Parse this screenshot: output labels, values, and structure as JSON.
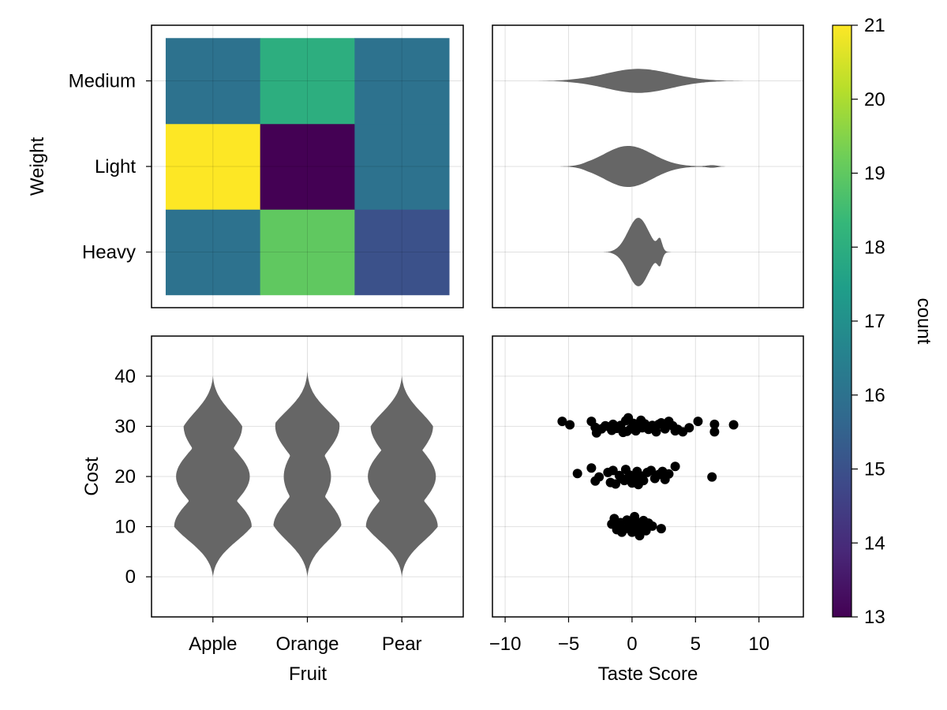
{
  "chart_data": [
    {
      "panel": "top-left",
      "type": "heatmap",
      "x_categories": [
        "Apple",
        "Orange",
        "Pear"
      ],
      "y_categories": [
        "Heavy",
        "Light",
        "Medium"
      ],
      "ylabel": "Weight",
      "values": [
        [
          16,
          19,
          15
        ],
        [
          21,
          13,
          16
        ],
        [
          16,
          18,
          16
        ]
      ],
      "colorrange": [
        13,
        21
      ],
      "grid": true
    },
    {
      "panel": "top-right",
      "type": "violin",
      "orientation": "horizontal",
      "y_categories": [
        "Heavy",
        "Light",
        "Medium"
      ],
      "x_range": [
        -11,
        13.5
      ],
      "series": [
        {
          "category": "Heavy",
          "center": 0.4,
          "min": -2.5,
          "max": 3.2,
          "max_halfwidth": 0.4,
          "peak_at": 0.5,
          "secondary": [
            {
              "at": 2.2,
              "w": 0.12
            }
          ]
        },
        {
          "category": "Light",
          "center": -0.3,
          "min": -5.8,
          "max": 7.5,
          "max_halfwidth": 0.24,
          "peak_at": -0.3,
          "secondary": [
            {
              "at": 6.5,
              "w": 0.03
            }
          ]
        },
        {
          "category": "Medium",
          "center": 0.5,
          "min": -8.0,
          "max": 10.0,
          "max_halfwidth": 0.14,
          "peak_at": 0.5,
          "secondary": []
        }
      ],
      "xticks": [
        -10,
        -5,
        0,
        5,
        10
      ],
      "grid": true
    },
    {
      "panel": "bottom-left",
      "type": "violin",
      "orientation": "vertical",
      "categories": [
        "Apple",
        "Orange",
        "Pear"
      ],
      "xlabel": "Fruit",
      "ylabel": "Cost",
      "ylim": [
        -8,
        48
      ],
      "yticks": [
        0,
        10,
        20,
        30,
        40
      ],
      "series": [
        {
          "category": "Apple",
          "min": 0,
          "max": 40,
          "modes": [
            {
              "at": 10,
              "w": 0.41
            },
            {
              "at": 20,
              "w": 0.39
            },
            {
              "at": 30,
              "w": 0.31
            }
          ]
        },
        {
          "category": "Orange",
          "min": 0,
          "max": 41,
          "modes": [
            {
              "at": 10,
              "w": 0.36
            },
            {
              "at": 20,
              "w": 0.25
            },
            {
              "at": 30,
              "w": 0.34
            }
          ]
        },
        {
          "category": "Pear",
          "min": 0,
          "max": 40,
          "modes": [
            {
              "at": 10,
              "w": 0.38
            },
            {
              "at": 20,
              "w": 0.36
            },
            {
              "at": 30,
              "w": 0.33
            }
          ]
        }
      ],
      "grid": true
    },
    {
      "panel": "bottom-right",
      "type": "scatter",
      "xlabel": "Taste Score",
      "xlim": [
        -11,
        13.5
      ],
      "ylim": [
        -8,
        48
      ],
      "xticks": [
        -10,
        -5,
        0,
        5,
        10
      ],
      "yticks": [
        0,
        10,
        20,
        30,
        40
      ],
      "points": [
        [
          -5.5,
          31
        ],
        [
          -4.9,
          30.3
        ],
        [
          -3.2,
          31
        ],
        [
          -2.8,
          28.7
        ],
        [
          -2.9,
          29.8
        ],
        [
          -2.4,
          29.5
        ],
        [
          -2.1,
          30.1
        ],
        [
          -1.8,
          29.9
        ],
        [
          -1.5,
          30.4
        ],
        [
          -1.2,
          29.6
        ],
        [
          -0.9,
          30.2
        ],
        [
          -0.7,
          28.8
        ],
        [
          -0.5,
          31.1
        ],
        [
          -0.3,
          31.7
        ],
        [
          -0.1,
          29.5
        ],
        [
          0.1,
          30.6
        ],
        [
          0.3,
          29.1
        ],
        [
          0.5,
          30.1
        ],
        [
          0.8,
          29.7
        ],
        [
          1.0,
          30.5
        ],
        [
          1.3,
          29.4
        ],
        [
          1.6,
          30.2
        ],
        [
          1.9,
          28.9
        ],
        [
          2.3,
          30.7
        ],
        [
          2.6,
          29.5
        ],
        [
          2.9,
          31.0
        ],
        [
          3.2,
          30.1
        ],
        [
          3.6,
          29.4
        ],
        [
          4.0,
          28.9
        ],
        [
          4.5,
          29.7
        ],
        [
          5.2,
          31.0
        ],
        [
          6.5,
          30.4
        ],
        [
          6.5,
          28.9
        ],
        [
          8.0,
          30.3
        ],
        [
          -1.6,
          29.2
        ],
        [
          0.7,
          31.2
        ],
        [
          1.8,
          29.8
        ],
        [
          -0.4,
          29.0
        ],
        [
          2.1,
          30.4
        ],
        [
          3.4,
          29.1
        ],
        [
          -4.3,
          20.6
        ],
        [
          -3.2,
          21.7
        ],
        [
          -2.9,
          19.1
        ],
        [
          -2.6,
          19.9
        ],
        [
          -1.9,
          20.8
        ],
        [
          -1.5,
          21.2
        ],
        [
          -1.3,
          18.5
        ],
        [
          -1.0,
          20.2
        ],
        [
          -0.8,
          19.6
        ],
        [
          -0.5,
          21.4
        ],
        [
          -0.2,
          20.3
        ],
        [
          0.0,
          18.7
        ],
        [
          0.2,
          19.8
        ],
        [
          0.4,
          21.0
        ],
        [
          0.7,
          20.1
        ],
        [
          0.9,
          19.2
        ],
        [
          1.2,
          20.8
        ],
        [
          1.5,
          21.2
        ],
        [
          1.8,
          19.6
        ],
        [
          2.1,
          20.4
        ],
        [
          2.6,
          19.4
        ],
        [
          2.9,
          20.5
        ],
        [
          3.4,
          22.0
        ],
        [
          6.3,
          19.9
        ],
        [
          -1.7,
          18.8
        ],
        [
          0.5,
          18.4
        ],
        [
          2.4,
          21.0
        ],
        [
          -0.6,
          19.2
        ],
        [
          -1.6,
          10.5
        ],
        [
          -1.4,
          11.6
        ],
        [
          -1.1,
          9.9
        ],
        [
          -0.9,
          10.8
        ],
        [
          -0.6,
          9.5
        ],
        [
          -0.4,
          11.3
        ],
        [
          -0.2,
          10.2
        ],
        [
          0.0,
          8.9
        ],
        [
          0.1,
          10.6
        ],
        [
          0.3,
          11.0
        ],
        [
          0.5,
          9.7
        ],
        [
          0.7,
          10.4
        ],
        [
          0.9,
          11.2
        ],
        [
          1.1,
          9.2
        ],
        [
          1.3,
          10.7
        ],
        [
          1.6,
          10.1
        ],
        [
          2.3,
          9.6
        ],
        [
          0.6,
          8.2
        ],
        [
          -0.8,
          8.9
        ],
        [
          0.2,
          12.0
        ],
        [
          -1.2,
          9.4
        ],
        [
          1.0,
          10.9
        ]
      ],
      "grid": true
    }
  ],
  "colorbar": {
    "label": "count",
    "range": [
      13,
      21
    ],
    "ticks": [
      13,
      14,
      15,
      16,
      17,
      18,
      19,
      20,
      21
    ],
    "colormap": "viridis"
  },
  "colors": {
    "violin_fill": "#666666",
    "scatter_point": "#000000"
  }
}
